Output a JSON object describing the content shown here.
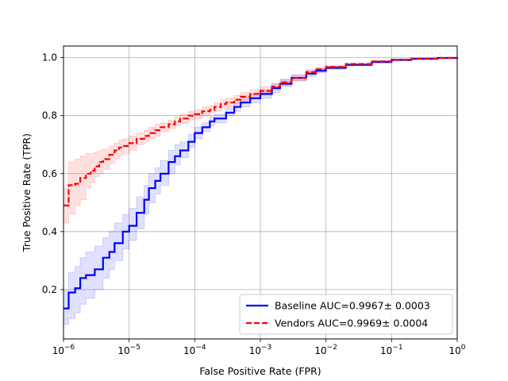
{
  "chart_data": {
    "type": "line",
    "xscale": "log",
    "xlim": [
      1e-06,
      1
    ],
    "ylim": [
      0.03,
      1.04
    ],
    "xlabel": "False Positive Rate (FPR)",
    "ylabel": "True Positive Rate (TPR)",
    "grid": true,
    "legend_position": "lower-right",
    "x_ticks": [
      {
        "value": 1e-06,
        "base": "10",
        "exp": "−6"
      },
      {
        "value": 1e-05,
        "base": "10",
        "exp": "−5"
      },
      {
        "value": 0.0001,
        "base": "10",
        "exp": "−4"
      },
      {
        "value": 0.001,
        "base": "10",
        "exp": "−3"
      },
      {
        "value": 0.01,
        "base": "10",
        "exp": "−2"
      },
      {
        "value": 0.1,
        "base": "10",
        "exp": "−1"
      },
      {
        "value": 1,
        "base": "10",
        "exp": "0"
      }
    ],
    "y_ticks": [
      {
        "value": 0.2,
        "label": "0.2"
      },
      {
        "value": 0.4,
        "label": "0.4"
      },
      {
        "value": 0.6,
        "label": "0.6"
      },
      {
        "value": 0.8,
        "label": "0.8"
      },
      {
        "value": 1.0,
        "label": "1.0"
      }
    ],
    "series": [
      {
        "name": "Baseline AUC=0.9967± 0.0003",
        "color": "#0000ff",
        "band_color": "#0000ff",
        "dash": "solid",
        "x": [
          1e-06,
          1.2e-06,
          1.5e-06,
          1.8e-06,
          2.2e-06,
          3e-06,
          4e-06,
          5e-06,
          6e-06,
          8e-06,
          1e-05,
          1.3e-05,
          1.7e-05,
          2e-05,
          2.5e-05,
          3e-05,
          4e-05,
          5e-05,
          6e-05,
          8e-05,
          0.0001,
          0.00013,
          0.00017,
          0.0002,
          0.0003,
          0.0004,
          0.0005,
          0.0007,
          0.001,
          0.0015,
          0.002,
          0.003,
          0.005,
          0.007,
          0.01,
          0.02,
          0.05,
          0.1,
          0.2,
          0.5,
          1
        ],
        "y": [
          0.135,
          0.19,
          0.205,
          0.24,
          0.25,
          0.27,
          0.31,
          0.33,
          0.36,
          0.4,
          0.42,
          0.465,
          0.51,
          0.55,
          0.575,
          0.6,
          0.64,
          0.66,
          0.68,
          0.71,
          0.74,
          0.76,
          0.78,
          0.79,
          0.81,
          0.83,
          0.845,
          0.86,
          0.875,
          0.895,
          0.91,
          0.93,
          0.945,
          0.955,
          0.965,
          0.975,
          0.985,
          0.992,
          0.996,
          0.999,
          1.0
        ],
        "y_lower": [
          0.08,
          0.1,
          0.12,
          0.15,
          0.17,
          0.2,
          0.24,
          0.27,
          0.3,
          0.34,
          0.37,
          0.41,
          0.46,
          0.5,
          0.53,
          0.56,
          0.6,
          0.63,
          0.655,
          0.69,
          0.72,
          0.745,
          0.765,
          0.775,
          0.8,
          0.815,
          0.83,
          0.845,
          0.86,
          0.88,
          0.9,
          0.92,
          0.935,
          0.948,
          0.96,
          0.972,
          0.982,
          0.99,
          0.995,
          0.998,
          1.0
        ],
        "y_upper": [
          0.2,
          0.26,
          0.28,
          0.31,
          0.33,
          0.35,
          0.38,
          0.4,
          0.43,
          0.46,
          0.48,
          0.52,
          0.56,
          0.6,
          0.62,
          0.645,
          0.68,
          0.7,
          0.71,
          0.735,
          0.76,
          0.775,
          0.795,
          0.805,
          0.825,
          0.845,
          0.86,
          0.875,
          0.89,
          0.91,
          0.925,
          0.94,
          0.955,
          0.963,
          0.97,
          0.978,
          0.988,
          0.994,
          0.997,
          1.0,
          1.0
        ]
      },
      {
        "name": "Vendors AUC=0.9969± 0.0004",
        "color": "#ff0000",
        "band_color": "#ff0000",
        "dash": "dashed",
        "x": [
          1e-06,
          1.2e-06,
          1.5e-06,
          1.8e-06,
          2.2e-06,
          2.6e-06,
          3e-06,
          3.5e-06,
          4e-06,
          5e-06,
          6e-06,
          7e-06,
          8e-06,
          1e-05,
          1.3e-05,
          1.7e-05,
          2e-05,
          2.5e-05,
          3e-05,
          4e-05,
          5e-05,
          6e-05,
          8e-05,
          0.0001,
          0.00013,
          0.00017,
          0.0002,
          0.00025,
          0.0003,
          0.0004,
          0.0005,
          0.0007,
          0.001,
          0.0015,
          0.002,
          0.003,
          0.005,
          0.007,
          0.01,
          0.02,
          0.05,
          0.1,
          0.2,
          0.5,
          1
        ],
        "y": [
          0.49,
          0.56,
          0.565,
          0.585,
          0.6,
          0.61,
          0.625,
          0.64,
          0.65,
          0.665,
          0.68,
          0.69,
          0.695,
          0.705,
          0.72,
          0.73,
          0.74,
          0.75,
          0.76,
          0.77,
          0.78,
          0.79,
          0.8,
          0.805,
          0.815,
          0.82,
          0.83,
          0.84,
          0.845,
          0.855,
          0.865,
          0.875,
          0.885,
          0.9,
          0.915,
          0.93,
          0.95,
          0.96,
          0.968,
          0.978,
          0.987,
          0.993,
          0.997,
          0.999,
          1.0
        ],
        "y_lower": [
          0.43,
          0.46,
          0.49,
          0.51,
          0.55,
          0.57,
          0.59,
          0.6,
          0.615,
          0.635,
          0.65,
          0.66,
          0.67,
          0.68,
          0.7,
          0.71,
          0.72,
          0.73,
          0.745,
          0.755,
          0.765,
          0.775,
          0.785,
          0.79,
          0.8,
          0.81,
          0.815,
          0.825,
          0.83,
          0.84,
          0.85,
          0.86,
          0.87,
          0.89,
          0.905,
          0.92,
          0.94,
          0.955,
          0.962,
          0.974,
          0.985,
          0.991,
          0.996,
          0.999,
          1.0
        ],
        "y_upper": [
          0.55,
          0.64,
          0.65,
          0.66,
          0.67,
          0.67,
          0.675,
          0.68,
          0.685,
          0.695,
          0.705,
          0.715,
          0.72,
          0.73,
          0.74,
          0.75,
          0.76,
          0.77,
          0.775,
          0.785,
          0.795,
          0.805,
          0.815,
          0.82,
          0.83,
          0.835,
          0.845,
          0.855,
          0.86,
          0.87,
          0.88,
          0.89,
          0.9,
          0.91,
          0.925,
          0.94,
          0.96,
          0.966,
          0.973,
          0.982,
          0.99,
          0.995,
          0.998,
          1.0,
          1.0
        ]
      }
    ]
  }
}
